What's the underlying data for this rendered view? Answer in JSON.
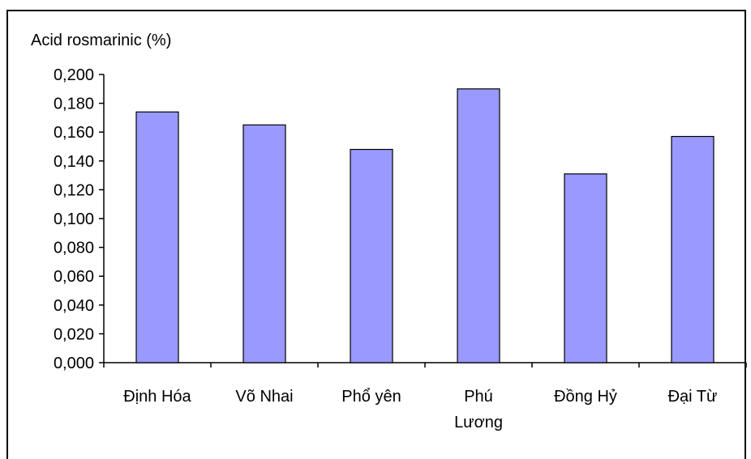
{
  "chart_data": {
    "type": "bar",
    "title": "",
    "ylabel": "Acid rosmarinic (%)",
    "xlabel": "",
    "categories": [
      "Định Hóa",
      "Võ Nhai",
      "Phổ yên",
      "Phú Lương",
      "Đồng Hỷ",
      "Đại Từ"
    ],
    "category_lines": [
      [
        "Định Hóa"
      ],
      [
        "Võ Nhai"
      ],
      [
        "Phổ yên"
      ],
      [
        "Phú",
        "Lương"
      ],
      [
        "Đồng Hỷ"
      ],
      [
        "Đại Từ"
      ]
    ],
    "values": [
      0.174,
      0.165,
      0.148,
      0.19,
      0.131,
      0.157
    ],
    "ylim": [
      0,
      0.2
    ],
    "yticks": [
      0,
      0.02,
      0.04,
      0.06,
      0.08,
      0.1,
      0.12,
      0.14,
      0.16,
      0.18,
      0.2
    ],
    "ytick_labels": [
      "0,000",
      "0,020",
      "0,040",
      "0,060",
      "0,080",
      "0,100",
      "0,120",
      "0,140",
      "0,160",
      "0,180",
      "0,200"
    ],
    "bar_color": "#9999ff",
    "bar_stroke": "#000000",
    "grid": false,
    "legend": "none"
  }
}
